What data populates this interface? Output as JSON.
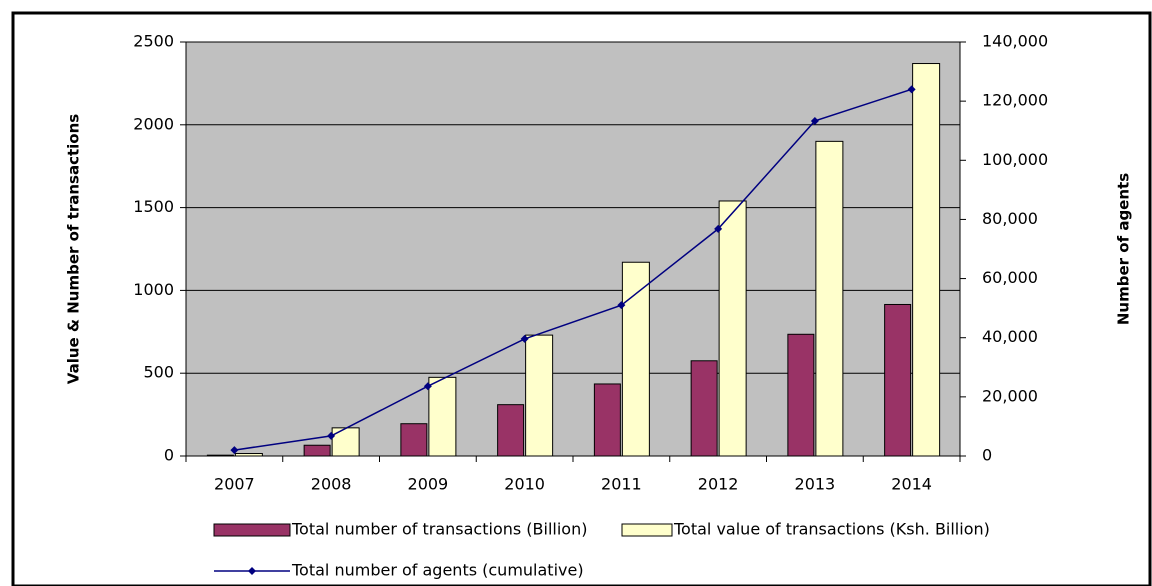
{
  "chart_data": {
    "type": "bar_line",
    "categories": [
      "2007",
      "2008",
      "2009",
      "2010",
      "2011",
      "2012",
      "2013",
      "2014"
    ],
    "series": [
      {
        "name": "Total number of transactions (Billion)",
        "type": "bar",
        "color": "#993366",
        "values": [
          5,
          65,
          195,
          310,
          435,
          575,
          735,
          915
        ]
      },
      {
        "name": "Total value of transactions (Ksh. Billion)",
        "type": "bar",
        "color": "#ffffcc",
        "values": [
          15,
          170,
          475,
          730,
          1170,
          1540,
          1900,
          2370
        ]
      },
      {
        "name": "Total number of agents (cumulative)",
        "type": "line",
        "axis": "y2",
        "color": "#000080",
        "values": [
          2000,
          6800,
          23600,
          39600,
          51000,
          76800,
          113300,
          124000
        ]
      }
    ],
    "ylabel": "Value & Number of transactions",
    "y2label": "Number of agents",
    "ylim": [
      0,
      2500
    ],
    "yticks": [
      0,
      500,
      1000,
      1500,
      2000,
      2500
    ],
    "y2lim": [
      0,
      140000
    ],
    "y2ticks": [
      0,
      {
        "value": 20000,
        "label": "20,000"
      },
      {
        "value": 40000,
        "label": "40,000"
      },
      {
        "value": 60000,
        "label": "60,000"
      },
      {
        "value": 80000,
        "label": "80,000"
      },
      {
        "value": 100000,
        "label": "100,000"
      },
      {
        "value": 120000,
        "label": "120,000"
      },
      {
        "value": 140000,
        "label": "140,000"
      }
    ],
    "grid": true,
    "plot_background": "#c0c0c0",
    "legend_position": "bottom"
  }
}
